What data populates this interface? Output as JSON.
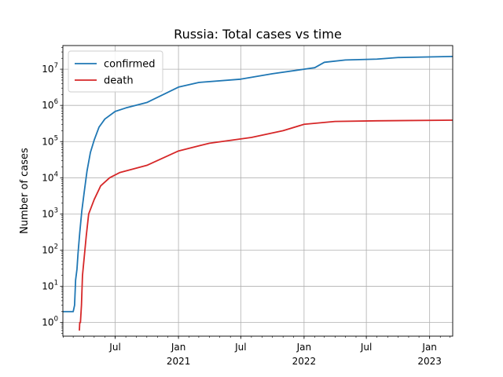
{
  "chart_data": {
    "type": "line",
    "title": "Russia: Total cases vs time",
    "xlabel": "",
    "ylabel": "Number of cases",
    "yscale": "log",
    "ylim": [
      0.42,
      45000000
    ],
    "xlim": [
      "2020-01-31",
      "2023-03-09"
    ],
    "grid": true,
    "legend_position": "top-left",
    "x_ticks": [
      {
        "date": "2020-07-01",
        "label": "Jul",
        "sub": ""
      },
      {
        "date": "2021-01-01",
        "label": "Jan",
        "sub": "2021"
      },
      {
        "date": "2021-07-01",
        "label": "Jul",
        "sub": ""
      },
      {
        "date": "2022-01-01",
        "label": "Jan",
        "sub": "2022"
      },
      {
        "date": "2022-07-01",
        "label": "Jul",
        "sub": ""
      },
      {
        "date": "2023-01-01",
        "label": "Jan",
        "sub": "2023"
      }
    ],
    "y_ticks": [
      {
        "exp": 0,
        "value": 1
      },
      {
        "exp": 1,
        "value": 10
      },
      {
        "exp": 2,
        "value": 100
      },
      {
        "exp": 3,
        "value": 1000
      },
      {
        "exp": 4,
        "value": 10000
      },
      {
        "exp": 5,
        "value": 100000
      },
      {
        "exp": 6,
        "value": 1000000
      },
      {
        "exp": 7,
        "value": 10000000
      }
    ],
    "series": [
      {
        "name": "confirmed",
        "color": "#1f77b4",
        "points": [
          [
            "2020-01-31",
            2
          ],
          [
            "2020-03-01",
            2
          ],
          [
            "2020-03-05",
            3
          ],
          [
            "2020-03-08",
            15
          ],
          [
            "2020-03-12",
            30
          ],
          [
            "2020-03-15",
            80
          ],
          [
            "2020-03-20",
            300
          ],
          [
            "2020-03-26",
            1200
          ],
          [
            "2020-04-02",
            4000
          ],
          [
            "2020-04-10",
            15000
          ],
          [
            "2020-04-20",
            50000
          ],
          [
            "2020-05-01",
            110000
          ],
          [
            "2020-05-15",
            250000
          ],
          [
            "2020-06-01",
            420000
          ],
          [
            "2020-07-01",
            680000
          ],
          [
            "2020-08-01",
            850000
          ],
          [
            "2020-10-01",
            1200000
          ],
          [
            "2020-12-01",
            2300000
          ],
          [
            "2021-01-01",
            3200000
          ],
          [
            "2021-03-01",
            4300000
          ],
          [
            "2021-07-01",
            5300000
          ],
          [
            "2021-10-01",
            7500000
          ],
          [
            "2022-01-01",
            10000000
          ],
          [
            "2022-02-01",
            11000000
          ],
          [
            "2022-03-01",
            15500000
          ],
          [
            "2022-05-01",
            18000000
          ],
          [
            "2022-08-01",
            19000000
          ],
          [
            "2022-10-01",
            21000000
          ],
          [
            "2023-03-09",
            22500000
          ]
        ]
      },
      {
        "name": "death",
        "color": "#d62728",
        "points": [
          [
            "2020-03-19",
            0.6
          ],
          [
            "2020-03-20",
            1
          ],
          [
            "2020-03-22",
            1
          ],
          [
            "2020-03-25",
            3
          ],
          [
            "2020-03-28",
            20
          ],
          [
            "2020-04-01",
            50
          ],
          [
            "2020-04-08",
            250
          ],
          [
            "2020-04-15",
            1000
          ],
          [
            "2020-05-01",
            2500
          ],
          [
            "2020-05-20",
            6000
          ],
          [
            "2020-06-15",
            10000
          ],
          [
            "2020-07-15",
            14000
          ],
          [
            "2020-10-01",
            22000
          ],
          [
            "2021-01-01",
            55000
          ],
          [
            "2021-04-01",
            90000
          ],
          [
            "2021-08-01",
            130000
          ],
          [
            "2021-11-01",
            200000
          ],
          [
            "2022-01-01",
            300000
          ],
          [
            "2022-04-01",
            360000
          ],
          [
            "2022-08-01",
            375000
          ],
          [
            "2023-03-09",
            390000
          ]
        ]
      }
    ]
  }
}
